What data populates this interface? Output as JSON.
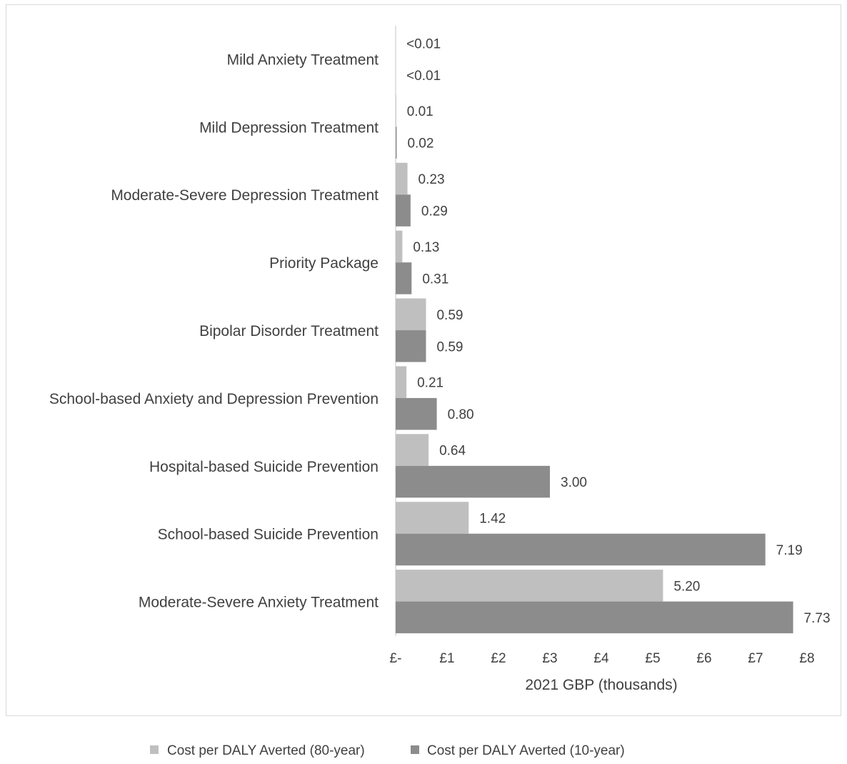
{
  "chart_data": {
    "type": "bar",
    "orientation": "horizontal",
    "categories": [
      "Mild Anxiety Treatment",
      "Mild Depression Treatment",
      "Moderate-Severe Depression Treatment",
      "Priority Package",
      "Bipolar Disorder Treatment",
      "School-based Anxiety and Depression Prevention",
      "Hospital-based Suicide Prevention",
      "School-based Suicide Prevention",
      "Moderate-Severe Anxiety Treatment"
    ],
    "series": [
      {
        "name": "Cost per DALY Averted (80-year)",
        "color": "#bfbfbf",
        "values": [
          0.001,
          0.01,
          0.23,
          0.13,
          0.59,
          0.21,
          0.64,
          1.42,
          5.2
        ],
        "labels": [
          "<0.01",
          "0.01",
          "0.23",
          "0.13",
          "0.59",
          "0.21",
          "0.64",
          "1.42",
          "5.20"
        ]
      },
      {
        "name": "Cost per DALY Averted (10-year)",
        "color": "#8c8c8c",
        "values": [
          0.001,
          0.02,
          0.29,
          0.31,
          0.59,
          0.8,
          3.0,
          7.19,
          7.73
        ],
        "labels": [
          "<0.01",
          "0.02",
          "0.29",
          "0.31",
          "0.59",
          "0.80",
          "3.00",
          "7.19",
          "7.73"
        ]
      }
    ],
    "xlim": [
      0,
      8
    ],
    "xticks": [
      0,
      1,
      2,
      3,
      4,
      5,
      6,
      7,
      8
    ],
    "xtick_labels": [
      "£-",
      "£1",
      "£2",
      "£3",
      "£4",
      "£5",
      "£6",
      "£7",
      "£8"
    ],
    "xlabel": "2021 GBP (thousands)",
    "title": "",
    "grid": false,
    "legend_position": "bottom"
  }
}
